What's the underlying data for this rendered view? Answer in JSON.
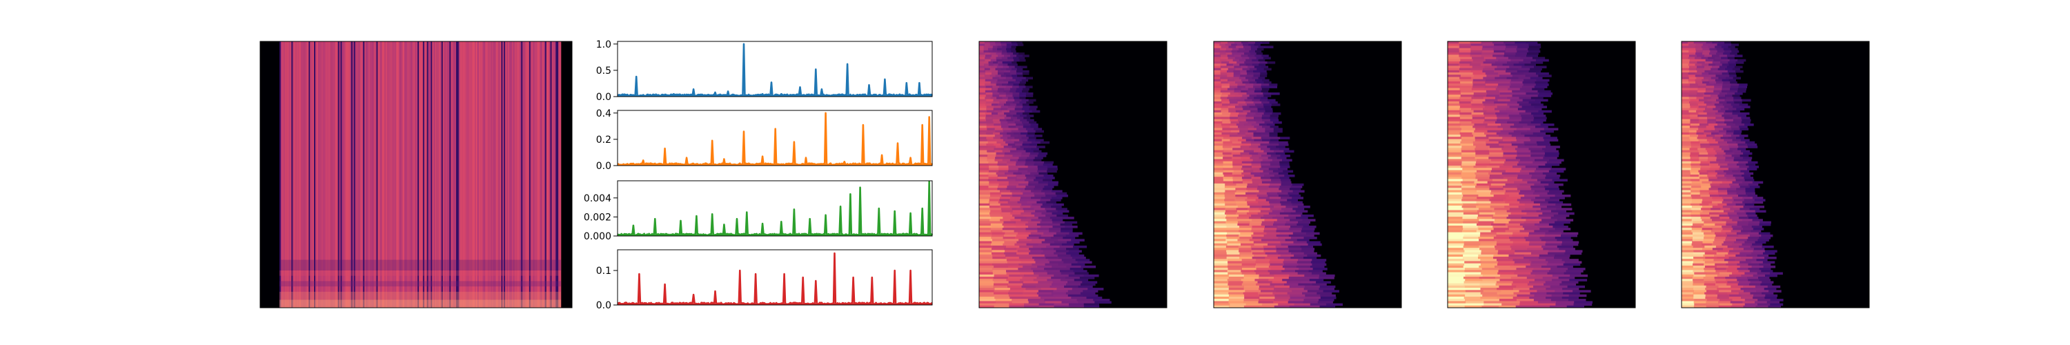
{
  "figure": {
    "panels": [
      {
        "name": "spectrogram-panel",
        "type": "heatmap",
        "style": "spectrogram"
      },
      {
        "name": "signal-panel-blue",
        "type": "line"
      },
      {
        "name": "signal-panel-orange",
        "type": "line"
      },
      {
        "name": "signal-panel-green",
        "type": "line"
      },
      {
        "name": "signal-panel-red",
        "type": "line"
      },
      {
        "name": "activation-panel-1",
        "type": "heatmap"
      },
      {
        "name": "activation-panel-2",
        "type": "heatmap"
      },
      {
        "name": "activation-panel-3",
        "type": "heatmap"
      },
      {
        "name": "activation-panel-4",
        "type": "heatmap"
      }
    ],
    "colormap": [
      "#000004",
      "#3b0f70",
      "#8c2981",
      "#de4968",
      "#fe9f6d",
      "#fcfdbf"
    ]
  },
  "chart_data": [
    {
      "type": "heatmap",
      "colormap": "magma",
      "note_free": true,
      "x_ticks": [],
      "y_ticks": []
    },
    {
      "type": "line",
      "color": "#1f77b4",
      "ylim": [
        0,
        1.05
      ],
      "yticks": [
        "0.0",
        "0.5",
        "1.0"
      ],
      "ytick_values": [
        0.0,
        0.5,
        1.0
      ],
      "peaks_x": [
        0.06,
        0.18,
        0.24,
        0.31,
        0.35,
        0.4,
        0.46,
        0.49,
        0.52,
        0.58,
        0.63,
        0.65,
        0.73,
        0.8,
        0.85,
        0.92,
        0.96
      ],
      "peaks_y": [
        0.38,
        0.05,
        0.14,
        0.08,
        0.1,
        1.0,
        0.05,
        0.27,
        0.05,
        0.18,
        0.52,
        0.14,
        0.62,
        0.22,
        0.33,
        0.26,
        0.26
      ]
    },
    {
      "type": "line",
      "color": "#ff7f0e",
      "ylim": [
        0,
        0.42
      ],
      "yticks": [
        "0.0",
        "0.2",
        "0.4"
      ],
      "ytick_values": [
        0.0,
        0.2,
        0.4
      ],
      "peaks_x": [
        0.08,
        0.15,
        0.22,
        0.3,
        0.34,
        0.4,
        0.46,
        0.5,
        0.56,
        0.6,
        0.66,
        0.72,
        0.78,
        0.84,
        0.89,
        0.93,
        0.97,
        0.99
      ],
      "peaks_y": [
        0.04,
        0.13,
        0.06,
        0.19,
        0.05,
        0.26,
        0.07,
        0.28,
        0.18,
        0.06,
        0.4,
        0.03,
        0.31,
        0.08,
        0.17,
        0.06,
        0.31,
        0.37
      ]
    },
    {
      "type": "line",
      "color": "#2ca02c",
      "ylim": [
        0,
        0.0058
      ],
      "yticks": [
        "0.000",
        "0.002",
        "0.004"
      ],
      "ytick_values": [
        0.0,
        0.002,
        0.004
      ],
      "peaks_x": [
        0.05,
        0.12,
        0.2,
        0.25,
        0.3,
        0.34,
        0.38,
        0.41,
        0.46,
        0.52,
        0.56,
        0.61,
        0.66,
        0.71,
        0.74,
        0.77,
        0.83,
        0.88,
        0.93,
        0.97,
        0.99
      ],
      "peaks_y": [
        0.0011,
        0.0018,
        0.0016,
        0.0021,
        0.0023,
        0.0012,
        0.0018,
        0.0025,
        0.0013,
        0.0015,
        0.0028,
        0.0018,
        0.0022,
        0.0031,
        0.0044,
        0.0051,
        0.0029,
        0.0026,
        0.0024,
        0.0029,
        0.0057
      ]
    },
    {
      "type": "line",
      "color": "#d62728",
      "ylim": [
        0,
        0.16
      ],
      "yticks": [
        "0.0",
        "0.1"
      ],
      "ytick_values": [
        0.0,
        0.1
      ],
      "peaks_x": [
        0.07,
        0.15,
        0.24,
        0.31,
        0.39,
        0.44,
        0.53,
        0.59,
        0.63,
        0.69,
        0.75,
        0.81,
        0.88,
        0.93
      ],
      "peaks_y": [
        0.09,
        0.06,
        0.03,
        0.04,
        0.1,
        0.09,
        0.09,
        0.08,
        0.07,
        0.15,
        0.08,
        0.08,
        0.1,
        0.1
      ]
    },
    {
      "type": "heatmap",
      "colormap": "magma"
    },
    {
      "type": "heatmap",
      "colormap": "magma"
    },
    {
      "type": "heatmap",
      "colormap": "magma"
    },
    {
      "type": "heatmap",
      "colormap": "magma"
    }
  ]
}
